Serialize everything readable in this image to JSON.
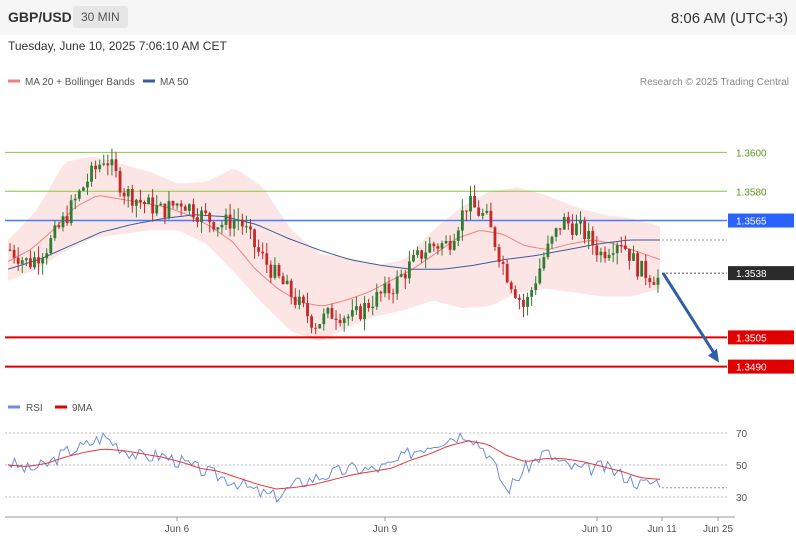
{
  "header": {
    "symbol": "GBP/USD",
    "interval": "30 MIN",
    "clock": "8:06 AM (UTC+3)",
    "datetime": "Tuesday, June 10, 2025 7:06:10 AM CET"
  },
  "legend": {
    "ma20": "MA 20 + Bollinger Bands",
    "ma50": "MA 50",
    "credit": "Research © 2025 Trading Central",
    "rsi": "RSI",
    "ma9": "9MA"
  },
  "colors": {
    "candle_up": "#2e7d32",
    "candle_down": "#c62828",
    "bollinger": "#fbdcdc",
    "ma20": "#f08080",
    "ma50": "#3b5f9a",
    "resistance_green": "#8bc34a",
    "pivot_blue": "#2962ff",
    "support_red": "#e00000",
    "rsi": "#6b8fe0",
    "rsi_ma": "#e53935",
    "forecast_arrow": "#2f5fa7"
  },
  "chart_data": {
    "type": "candlestick",
    "title": "GBP/USD",
    "ylim": [
      1.3478,
      1.3632
    ],
    "x_labels": [
      "Jun 6",
      "Jun 9",
      "Jun 10",
      "Jun 11",
      "Jun 25"
    ],
    "levels": [
      {
        "label": "1.3600",
        "value": 1.36,
        "style": "resistance"
      },
      {
        "label": "1.3580",
        "value": 1.358,
        "style": "resistance"
      },
      {
        "label": "1.3565",
        "value": 1.3565,
        "style": "pivot"
      },
      {
        "label": "1.3538",
        "value": 1.3538,
        "style": "last"
      },
      {
        "label": "1.3505",
        "value": 1.3505,
        "style": "support"
      },
      {
        "label": "1.3490",
        "value": 1.349,
        "style": "support"
      }
    ],
    "close_anchors": [
      1.355,
      1.3543,
      1.3552,
      1.3568,
      1.3585,
      1.3598,
      1.358,
      1.3574,
      1.357,
      1.3575,
      1.3568,
      1.3563,
      1.3566,
      1.3549,
      1.3536,
      1.3524,
      1.3512,
      1.3518,
      1.3515,
      1.3524,
      1.353,
      1.3542,
      1.3552,
      1.3553,
      1.3574,
      1.3566,
      1.3539,
      1.352,
      1.3546,
      1.3565,
      1.356,
      1.3548,
      1.3556,
      1.354,
      1.3535
    ],
    "ma20": [
      1.3544,
      1.355,
      1.356,
      1.3572,
      1.3578,
      1.3576,
      1.3574,
      1.3572,
      1.3568,
      1.3562,
      1.3554,
      1.354,
      1.353,
      1.3523,
      1.3521,
      1.3524,
      1.3528,
      1.3534,
      1.354,
      1.3548,
      1.3556,
      1.356,
      1.3558,
      1.3552,
      1.355,
      1.3553,
      1.3555,
      1.3553,
      1.3549,
      1.3545
    ],
    "bollinger_upper": [
      1.3555,
      1.357,
      1.3595,
      1.3598,
      1.3594,
      1.359,
      1.3584,
      1.3585,
      1.3592,
      1.3582,
      1.356,
      1.3548,
      1.3546,
      1.3542,
      1.3545,
      1.356,
      1.3572,
      1.358,
      1.3582,
      1.3578,
      1.3572,
      1.3568,
      1.3566,
      1.3562
    ],
    "bollinger_lower": [
      1.3534,
      1.354,
      1.3549,
      1.3556,
      1.3558,
      1.356,
      1.356,
      1.3553,
      1.3538,
      1.3522,
      1.3508,
      1.3503,
      1.351,
      1.3516,
      1.3519,
      1.3524,
      1.352,
      1.3521,
      1.3528,
      1.353,
      1.3528,
      1.3526,
      1.3526,
      1.353
    ],
    "ma50": [
      1.354,
      1.3545,
      1.3552,
      1.3559,
      1.3563,
      1.3566,
      1.3568,
      1.3567,
      1.3563,
      1.3556,
      1.355,
      1.3545,
      1.3542,
      1.354,
      1.354,
      1.3542,
      1.3545,
      1.3547,
      1.355,
      1.3553,
      1.3555,
      1.3555
    ],
    "forecast": {
      "from": 1.3538,
      "to": 1.349
    },
    "rsi": {
      "ylim": [
        25,
        75
      ],
      "ticks": [
        30,
        50,
        70
      ],
      "rsi_values": [
        52,
        47,
        50,
        58,
        62,
        68,
        60,
        55,
        56,
        52,
        47,
        43,
        39,
        33,
        30,
        38,
        42,
        45,
        48,
        47,
        50,
        58,
        63,
        67,
        70,
        58,
        34,
        48,
        58,
        50,
        47,
        49,
        44,
        38,
        40
      ],
      "ma_values": [
        50,
        49,
        51,
        55,
        58,
        60,
        59,
        57,
        55,
        52,
        48,
        46,
        42,
        38,
        35,
        36,
        38,
        41,
        44,
        46,
        48,
        53,
        57,
        62,
        65,
        63,
        56,
        52,
        54,
        54,
        52,
        49,
        46,
        42,
        41
      ]
    }
  }
}
